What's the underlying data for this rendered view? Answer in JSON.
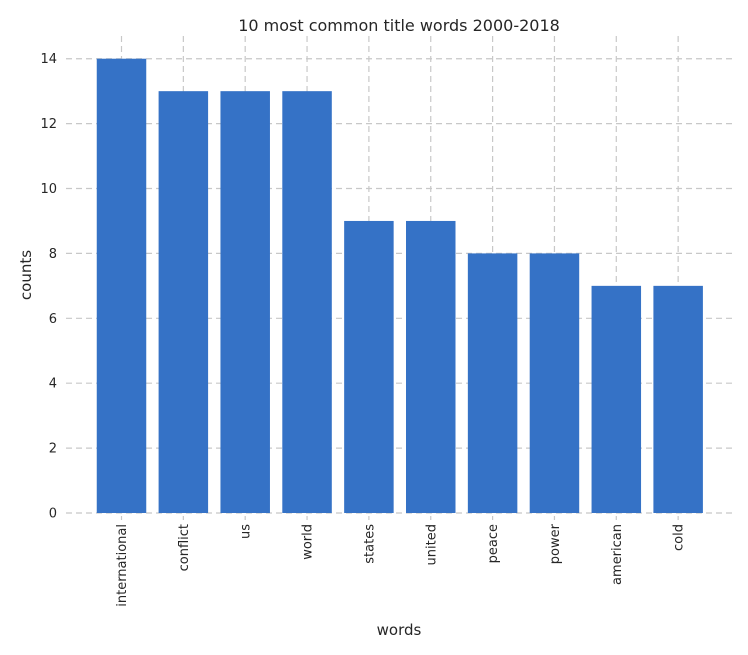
{
  "chart_data": {
    "type": "bar",
    "title": "10 most common title words 2000-2018",
    "xlabel": "words",
    "ylabel": "counts",
    "categories": [
      "international",
      "conflict",
      "us",
      "world",
      "states",
      "united",
      "peace",
      "power",
      "american",
      "cold"
    ],
    "values": [
      14,
      13,
      13,
      13,
      9,
      9,
      8,
      8,
      7,
      7
    ],
    "ylim": [
      0,
      14.7
    ],
    "yticks": [
      0,
      2,
      4,
      6,
      8,
      10,
      12,
      14
    ],
    "grid": true,
    "bar_color": "#3572c6",
    "grid_color": "#c8c8c8"
  }
}
